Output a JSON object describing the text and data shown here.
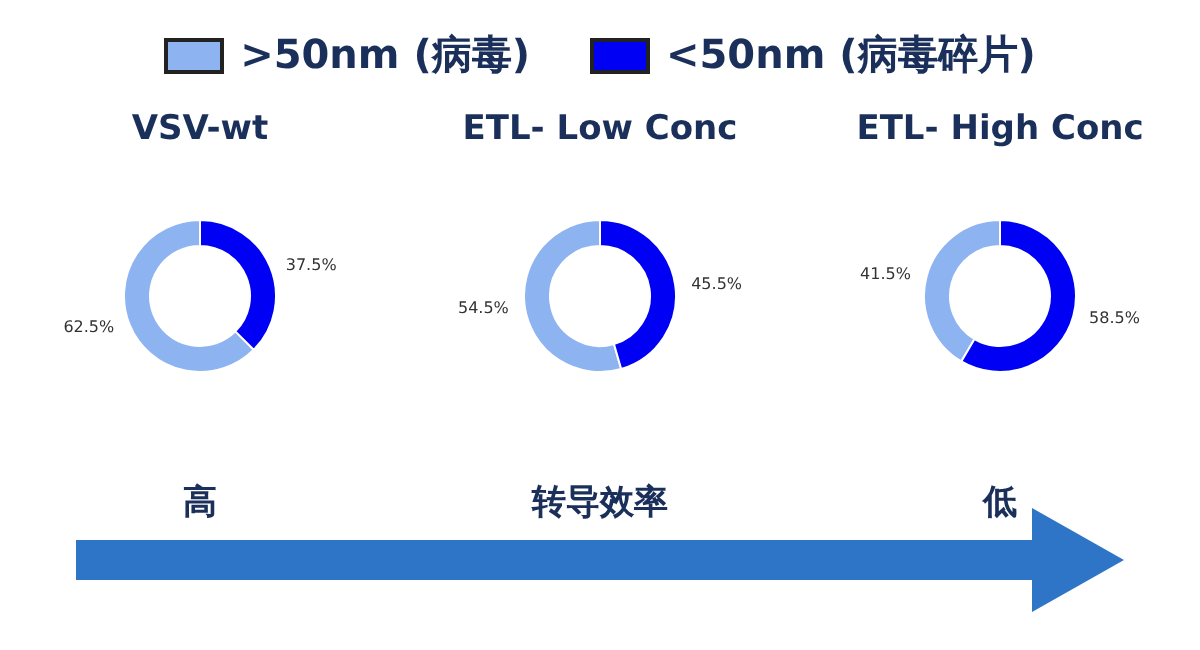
{
  "chart_data": [
    {
      "type": "donut",
      "title": "VSV-wt",
      "categories": [
        ">50nm (病毒)",
        "<50nm (病毒碎片)"
      ],
      "values": [
        62.5,
        37.5
      ],
      "colors": [
        "#8db3f0",
        "#0000f5"
      ],
      "value_labels": [
        "62.5%",
        "37.5%"
      ],
      "legend": "top",
      "annotations": [
        "高"
      ]
    },
    {
      "type": "donut",
      "title": "ETL- Low Conc",
      "categories": [
        null,
        null
      ],
      "values": [
        54.5,
        45.5
      ],
      "colors": [
        "#8db3f0",
        "#0000f5"
      ],
      "value_labels": [
        "54.5%",
        "45.5%"
      ],
      "annotations": [
        "转导效率"
      ]
    },
    {
      "type": "donut",
      "title": "ETL- High Conc",
      "categories": [
        null,
        null
      ],
      "values": [
        41.5,
        58.5
      ],
      "colors": [
        "#8db3f0",
        "#0000f5"
      ],
      "value_labels": [
        "41.5%",
        "58.5%"
      ],
      "annotations": [
        "低"
      ]
    }
  ]
}
